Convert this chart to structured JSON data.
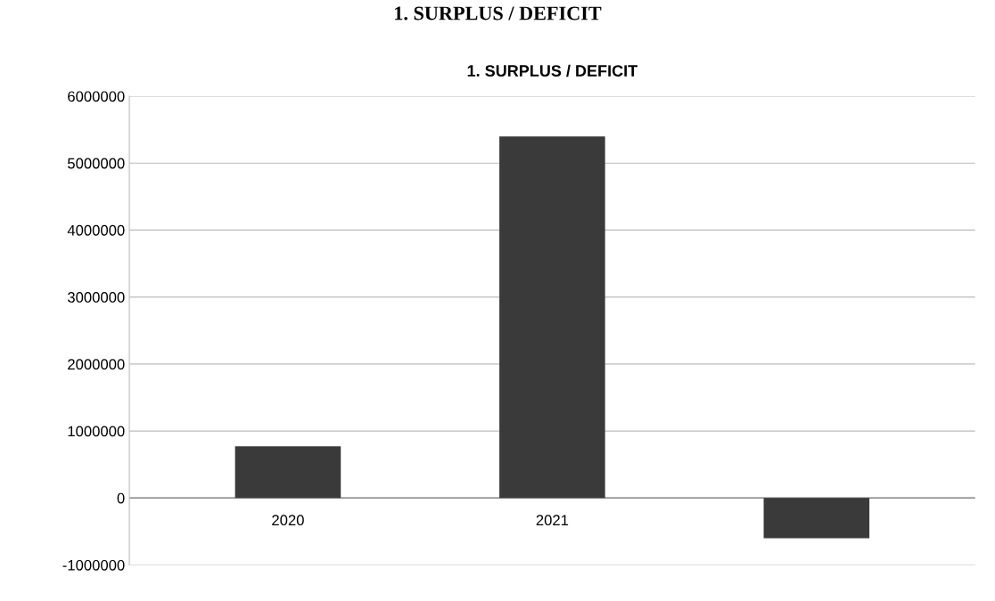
{
  "chart_data": {
    "type": "bar",
    "title": "1. SURPLUS / DEFICIT",
    "annotations": [
      "1. SURPLUS / DEFICIT"
    ],
    "categories": [
      "2020",
      "2021",
      null
    ],
    "values": [
      770000,
      5400000,
      -600000
    ],
    "color": "#3a3a3a",
    "ylim": [
      -1000000,
      6000000
    ],
    "yticks": [
      -1000000,
      0,
      1000000,
      2000000,
      3000000,
      4000000,
      5000000,
      6000000
    ],
    "grid": "y",
    "legend": false
  }
}
